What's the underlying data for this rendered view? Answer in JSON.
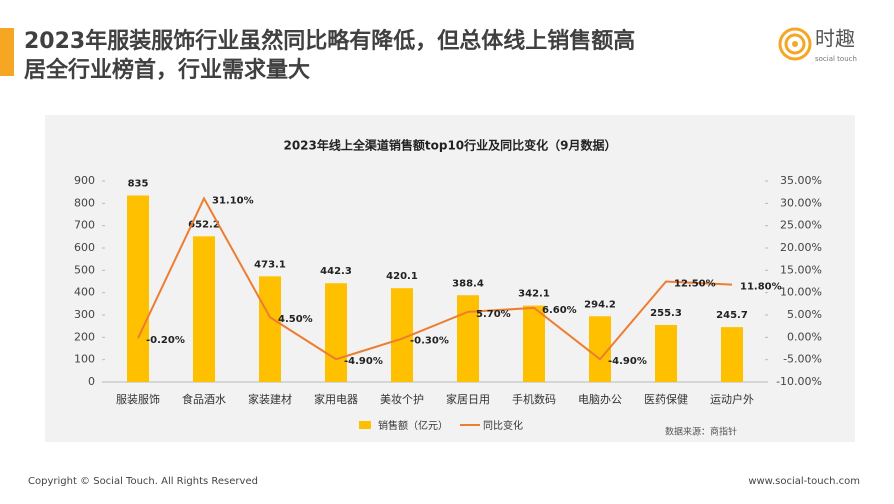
{
  "header": {
    "title": [
      "2023年服装服饰行业虽然同比略有降低，但总体线上销售额高",
      "居全行业榜首，行业需求量大"
    ],
    "logo": {
      "name": "时趣",
      "tagline": "social touch"
    }
  },
  "chart_data": {
    "type": "bar",
    "title": "2023年线上全渠道销售额top10行业及同比变化（9月数据）",
    "categories": [
      "服装服饰",
      "食品酒水",
      "家装建材",
      "家用电器",
      "美妆个护",
      "家居日用",
      "手机数码",
      "电脑办公",
      "医药保健",
      "运动户外"
    ],
    "series": [
      {
        "name": "销售额（亿元）",
        "color": "#ffc000",
        "values": [
          835,
          652.2,
          473.1,
          442.3,
          420.1,
          388.4,
          342.1,
          294.2,
          255.3,
          245.7
        ]
      },
      {
        "name": "同比变化",
        "color": "#ed7d31",
        "type": "line",
        "axis": "y2",
        "values": [
          -0.2,
          31.1,
          4.5,
          -4.9,
          -0.3,
          5.7,
          6.6,
          -4.9,
          12.5,
          11.8
        ],
        "value_labels": [
          "-0.20%",
          "31.10%",
          "4.50%",
          "-4.90%",
          "-0.30%",
          "5.70%",
          "6.60%",
          "-4.90%",
          "12.50%",
          "11.80%"
        ]
      }
    ],
    "ylim": [
      0,
      900
    ],
    "yticks": [
      0,
      100,
      200,
      300,
      400,
      500,
      600,
      700,
      800,
      900
    ],
    "y2lim": [
      -10,
      35
    ],
    "y2ticks": [
      {
        "value": -10,
        "label": "-10.00%"
      },
      {
        "value": -5,
        "label": "-5.00%"
      },
      {
        "value": 0,
        "label": "0.00%"
      },
      {
        "value": 5,
        "label": "5.00%"
      },
      {
        "value": 10,
        "label": "10.00%"
      },
      {
        "value": 15,
        "label": "15.00%"
      },
      {
        "value": 20,
        "label": "20.00%"
      },
      {
        "value": 25,
        "label": "25.00%"
      },
      {
        "value": 30,
        "label": "30.00%"
      },
      {
        "value": 35,
        "label": "35.00%"
      }
    ],
    "legend": "bottom",
    "source": "数据来源：商指针"
  },
  "footer": {
    "copyright": "Copyright © Social Touch. All Rights Reserved",
    "url": "www.social-touch.com"
  }
}
